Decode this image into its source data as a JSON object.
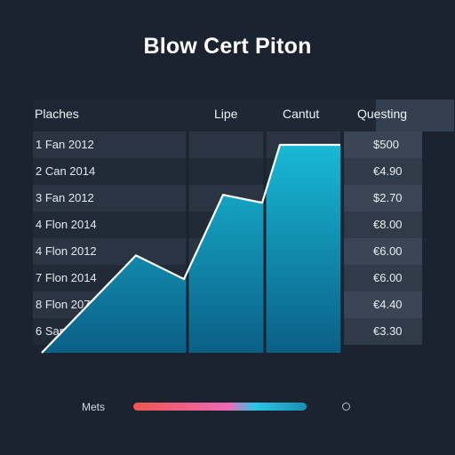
{
  "title": "Blow Cert Piton",
  "table": {
    "headers": [
      "Plaches",
      "Lipe",
      "Cantut",
      "Questing"
    ],
    "rows": [
      {
        "label": "1 Fan 2012",
        "value": "$500"
      },
      {
        "label": "2 Can 2014",
        "value": "€4.90"
      },
      {
        "label": "3 Fan 2012",
        "value": "$2.70"
      },
      {
        "label": "4 Flon 2014",
        "value": "€8.00"
      },
      {
        "label": "4 Flon 2012",
        "value": "€6.00"
      },
      {
        "label": "7 Flon 2014",
        "value": "€6.00"
      },
      {
        "label": "8 Flon 2072",
        "value": "€4.40"
      },
      {
        "label": "6 San 202",
        "value": "€3.30"
      }
    ]
  },
  "legend": {
    "label": "Mets"
  },
  "colors": {
    "area_top": "#18b9d6",
    "area_bottom": "#0b5f86",
    "line": "#ffffff",
    "background": "#1b2230"
  },
  "chart_data": {
    "type": "area",
    "title": "Blow Cert Piton",
    "x": [
      0,
      1,
      2,
      3,
      4,
      5,
      6,
      7
    ],
    "values": [
      0,
      3.7,
      2.8,
      6.0,
      5.7,
      7.9,
      7.9,
      7.9
    ],
    "ylim": [
      0,
      8
    ],
    "grid": false,
    "legend": "bottom"
  }
}
